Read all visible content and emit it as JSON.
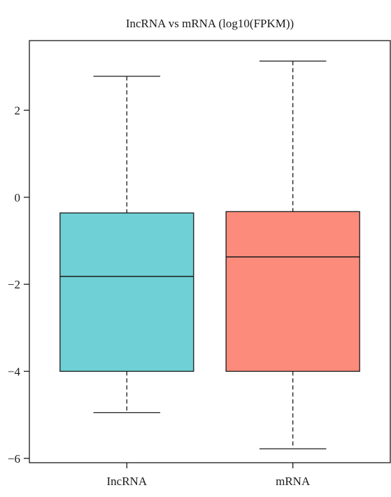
{
  "chart_data": {
    "type": "box",
    "title": "IncRNA vs mRNA (log10(FPKM))",
    "xlabel": "",
    "ylabel": "",
    "ylim": [
      -6.1,
      3.6
    ],
    "yticks": [
      2,
      0,
      -2,
      -4,
      -6
    ],
    "ytick_labels": [
      "2",
      "0",
      "−2",
      "−4",
      "−6"
    ],
    "categories": [
      "IncRNA",
      "mRNA"
    ],
    "boxes": [
      {
        "name": "IncRNA",
        "whisker_low": -4.95,
        "q1": -4.0,
        "median": -1.82,
        "q3": -0.36,
        "whisker_high": 2.78,
        "color": "#6fd0d6"
      },
      {
        "name": "mRNA",
        "whisker_low": -5.78,
        "q1": -4.0,
        "median": -1.37,
        "q3": -0.33,
        "whisker_high": 3.13,
        "color": "#fd8b7c"
      }
    ],
    "grid": false,
    "legend": "none"
  }
}
